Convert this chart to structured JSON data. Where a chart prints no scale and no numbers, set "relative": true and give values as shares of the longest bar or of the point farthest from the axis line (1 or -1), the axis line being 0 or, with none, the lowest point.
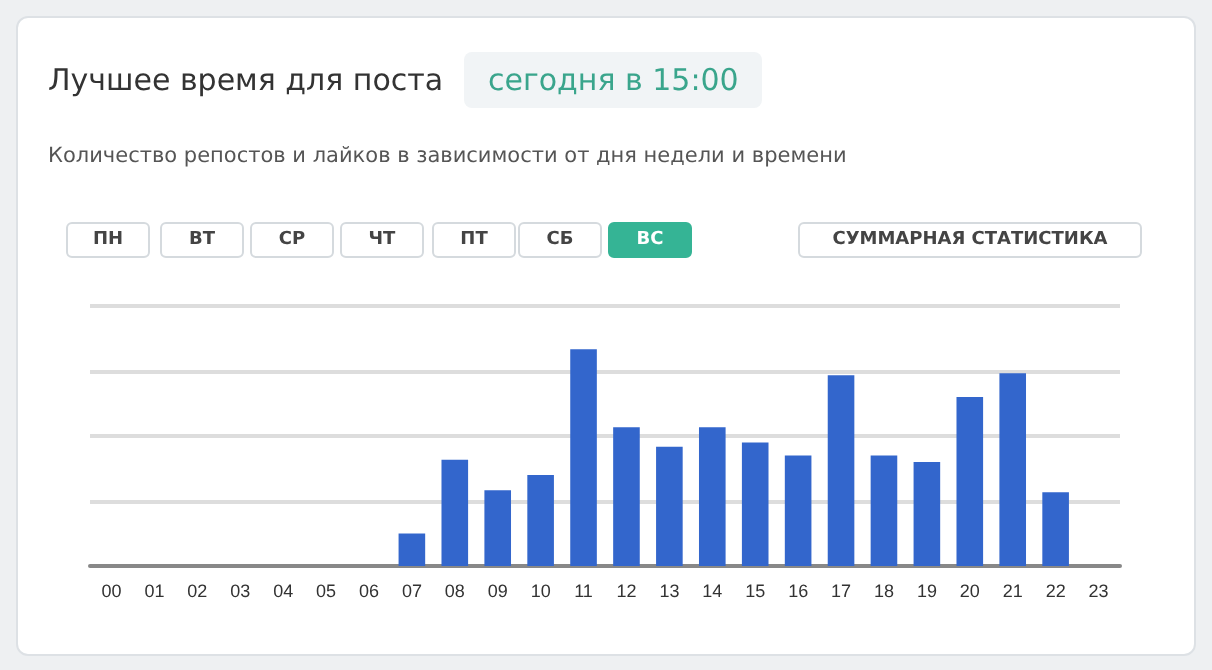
{
  "chart_data": {
    "type": "bar",
    "title": "Лучшее время для поста",
    "subtitle": "Количество репостов и лайков в зависимости от дня недели и времени",
    "annotations": [
      "сегодня в 15:00",
      "ПН",
      "ВТ",
      "СР",
      "ЧТ",
      "ПТ",
      "СБ",
      "ВС",
      "СУММАРНАЯ СТАТИСТИКА"
    ],
    "categories": [
      "00",
      "01",
      "02",
      "03",
      "04",
      "05",
      "06",
      "07",
      "08",
      "09",
      "10",
      "11",
      "12",
      "13",
      "14",
      "15",
      "16",
      "17",
      "18",
      "19",
      "20",
      "21",
      "22",
      "23"
    ],
    "values": [
      0,
      0,
      0,
      0,
      0,
      0,
      0,
      0.15,
      0.49,
      0.35,
      0.42,
      1,
      0.64,
      0.55,
      0.64,
      0.57,
      0.51,
      0.88,
      0.51,
      0.48,
      0.78,
      0.89,
      0.34,
      0
    ],
    "color": "#3366cc",
    "relative": true,
    "grid": "y"
  }
}
